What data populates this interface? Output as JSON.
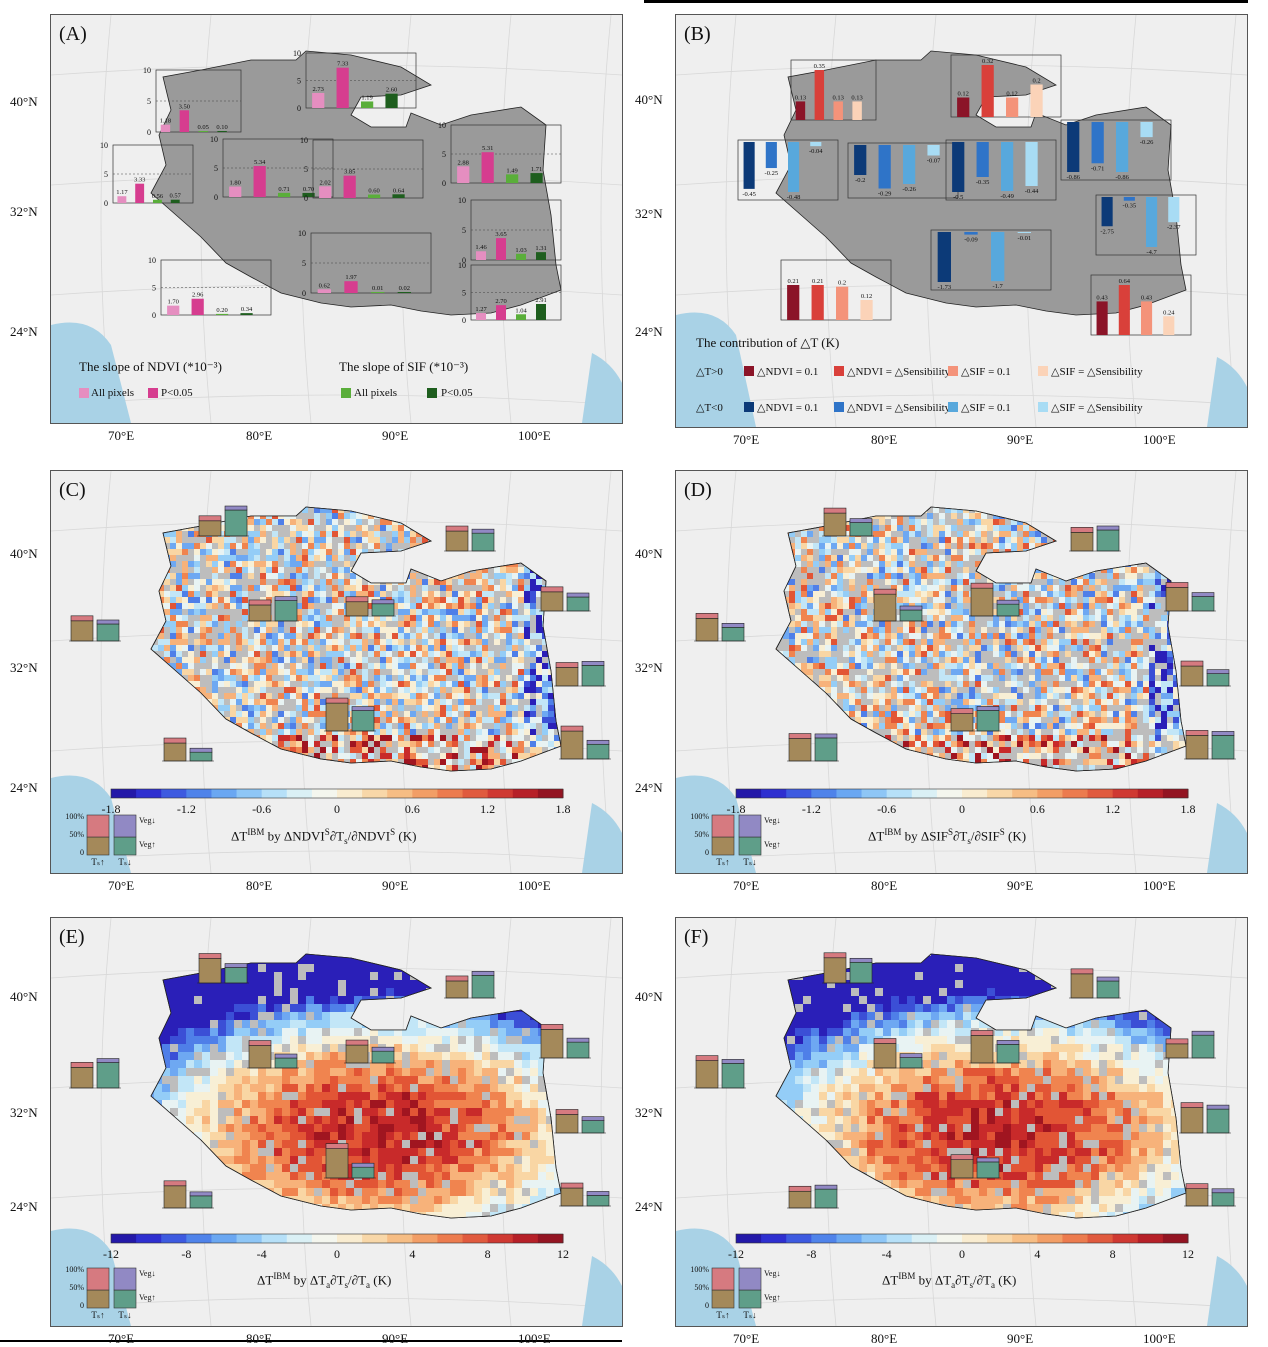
{
  "colors": {
    "ndvi_all": "#e58ec0",
    "ndvi_sig": "#d63d8f",
    "sif_all": "#5aae3a",
    "sif_sig": "#1e5e1e",
    "pos_ndvi_01": "#8b1428",
    "pos_ndvi_sens": "#d9403a",
    "pos_sif_01": "#f4937a",
    "pos_sif_sens": "#fbd3b8",
    "neg_ndvi_01": "#0c3a78",
    "neg_ndvi_sens": "#2f74c8",
    "neg_sif_01": "#58a8dc",
    "neg_sif_sens": "#a8dcf4",
    "ts_up": "#a4895a",
    "ts_up_top": "#d67a80",
    "veg_up": "#5f9e89",
    "veg_down": "#9189c4"
  },
  "top_bar_ticks": [
    "10",
    "5",
    "0"
  ],
  "panels": {
    "A": {
      "label": "(A)",
      "latitudes": [
        "40°N",
        "32°N",
        "24°N"
      ],
      "longitudes": [
        "70°E",
        "80°E",
        "90°E",
        "100°E"
      ],
      "legend": {
        "ndvi_title": "The slope of  NDVI (*10⁻³)",
        "sif_title": "The slope of  SIF (*10⁻³)",
        "items": [
          "All pixels",
          "P<0.05",
          "All pixels",
          "P<0.05"
        ]
      }
    },
    "B": {
      "label": "(B)",
      "latitudes": [
        "40°N",
        "32°N",
        "24°N"
      ],
      "longitudes": [
        "70°E",
        "80°E",
        "90°E",
        "100°E"
      ],
      "legend": {
        "title": "The contribution of △T (K)",
        "row1_head": "△T>0",
        "row2_head": "△T<0",
        "row1": [
          "△NDVI = 0.1",
          "△NDVI = △Sensibility",
          "△SIF = 0.1",
          "△SIF = △Sensibility"
        ],
        "row2": [
          "△NDVI = 0.1",
          "△NDVI = △Sensibility",
          "△SIF = 0.1",
          "△SIF = △Sensibility"
        ]
      }
    },
    "C": {
      "label": "(C)",
      "latitudes": [
        "40°N",
        "32°N",
        "24°N"
      ],
      "longitudes": [
        "70°E",
        "80°E",
        "90°E",
        "100°E"
      ],
      "cbar_title": "ΔT^IBM by ΔNDVI^S∂T_s/∂NDVI^S (K)",
      "cbar_ticks": [
        "-1.8",
        "-1.2",
        "-0.6",
        "0",
        "0.6",
        "1.2",
        "1.8"
      ]
    },
    "D": {
      "label": "(D)",
      "latitudes": [
        "40°N",
        "32°N",
        "24°N"
      ],
      "longitudes": [
        "70°E",
        "80°E",
        "90°E",
        "100°E"
      ],
      "cbar_title": "ΔT^IBM by ΔSIF^S∂T_s/∂SIF^S (K)",
      "cbar_ticks": [
        "-1.8",
        "-1.2",
        "-0.6",
        "0",
        "0.6",
        "1.2",
        "1.8"
      ]
    },
    "E": {
      "label": "(E)",
      "latitudes": [
        "40°N",
        "32°N",
        "24°N"
      ],
      "longitudes": [
        "70°E",
        "80°E",
        "90°E",
        "100°E"
      ],
      "cbar_title": "ΔT^IBM by ΔT_a∂T_s/∂T_a (K)",
      "cbar_ticks": [
        "-12",
        "-8",
        "-4",
        "0",
        "4",
        "8",
        "12"
      ]
    },
    "F": {
      "label": "(F)",
      "latitudes": [
        "40°N",
        "32°N",
        "24°N"
      ],
      "longitudes": [
        "70°E",
        "80°E",
        "90°E",
        "100°E"
      ],
      "cbar_title": "ΔT^IBM by ΔT_a∂T_s/∂T_a (K)",
      "cbar_ticks": [
        "-12",
        "-8",
        "-4",
        "0",
        "4",
        "8",
        "12"
      ]
    }
  },
  "inset_legend": {
    "y_ticks": [
      "100%",
      "50%",
      "0"
    ],
    "veg_down": "Veg↓",
    "veg_up": "Veg↑",
    "ts_up": "Tₛ↑",
    "ts_down": "Tₛ↓"
  },
  "chart_data": [
    {
      "type": "bar",
      "panel": "A",
      "series_names": [
        "All pixels",
        "P<0.05",
        "All pixels",
        "P<0.05"
      ],
      "regions": [
        {
          "values": [
            1.18,
            3.5,
            0.05,
            0.1
          ]
        },
        {
          "values": [
            2.73,
            7.33,
            1.19,
            2.6
          ]
        },
        {
          "values": [
            1.17,
            3.33,
            0.56,
            0.57
          ]
        },
        {
          "values": [
            1.8,
            5.34,
            0.71,
            0.7
          ]
        },
        {
          "values": [
            2.02,
            3.85,
            0.6,
            0.64
          ]
        },
        {
          "values": [
            2.88,
            5.31,
            1.49,
            1.71
          ]
        },
        {
          "values": [
            1.46,
            3.65,
            1.03,
            1.31
          ]
        },
        {
          "values": [
            0.62,
            1.97,
            0.01,
            0.02
          ]
        },
        {
          "values": [
            1.7,
            2.96,
            0.2,
            0.34
          ]
        },
        {
          "values": [
            1.27,
            2.7,
            1.04,
            2.91
          ]
        }
      ]
    },
    {
      "type": "bar",
      "panel": "B",
      "series_names": [
        "△NDVI = 0.1",
        "△NDVI = △Sensibility",
        "△SIF = 0.1",
        "△SIF = △Sensibility"
      ],
      "regions": [
        {
          "values": [
            0.13,
            0.35,
            0.13,
            0.13
          ]
        },
        {
          "values": [
            0.12,
            0.32,
            0.12,
            0.2
          ]
        },
        {
          "values": [
            -0.45,
            -0.25,
            -0.48,
            -0.04
          ]
        },
        {
          "values": [
            -0.2,
            -0.29,
            -0.26,
            -0.07
          ]
        },
        {
          "values": [
            -0.5,
            -0.35,
            -0.49,
            -0.44
          ]
        },
        {
          "values": [
            -0.86,
            -0.71,
            -0.86,
            -0.26
          ]
        },
        {
          "values": [
            -2.75,
            -0.35,
            -4.7,
            -2.37
          ]
        },
        {
          "values": [
            -1.73,
            -0.09,
            -1.7,
            -0.01
          ]
        },
        {
          "values": [
            0.21,
            0.21,
            0.2,
            0.12
          ]
        },
        {
          "values": [
            0.43,
            0.64,
            0.43,
            0.24
          ]
        }
      ]
    },
    {
      "type": "heatmap",
      "panel": "C",
      "colorbar_range": [
        -1.8,
        1.8
      ],
      "colorbar_ticks": [
        -1.8,
        -1.2,
        -0.6,
        0,
        0.6,
        1.2,
        1.8
      ],
      "unit": "K"
    },
    {
      "type": "heatmap",
      "panel": "D",
      "colorbar_range": [
        -1.8,
        1.8
      ],
      "colorbar_ticks": [
        -1.8,
        -1.2,
        -0.6,
        0,
        0.6,
        1.2,
        1.8
      ],
      "unit": "K"
    },
    {
      "type": "heatmap",
      "panel": "E",
      "colorbar_range": [
        -12,
        12
      ],
      "colorbar_ticks": [
        -12,
        -8,
        -4,
        0,
        4,
        8,
        12
      ],
      "unit": "K"
    },
    {
      "type": "heatmap",
      "panel": "F",
      "colorbar_range": [
        -12,
        12
      ],
      "colorbar_ticks": [
        -12,
        -8,
        -4,
        0,
        4,
        8,
        12
      ],
      "unit": "K"
    }
  ]
}
